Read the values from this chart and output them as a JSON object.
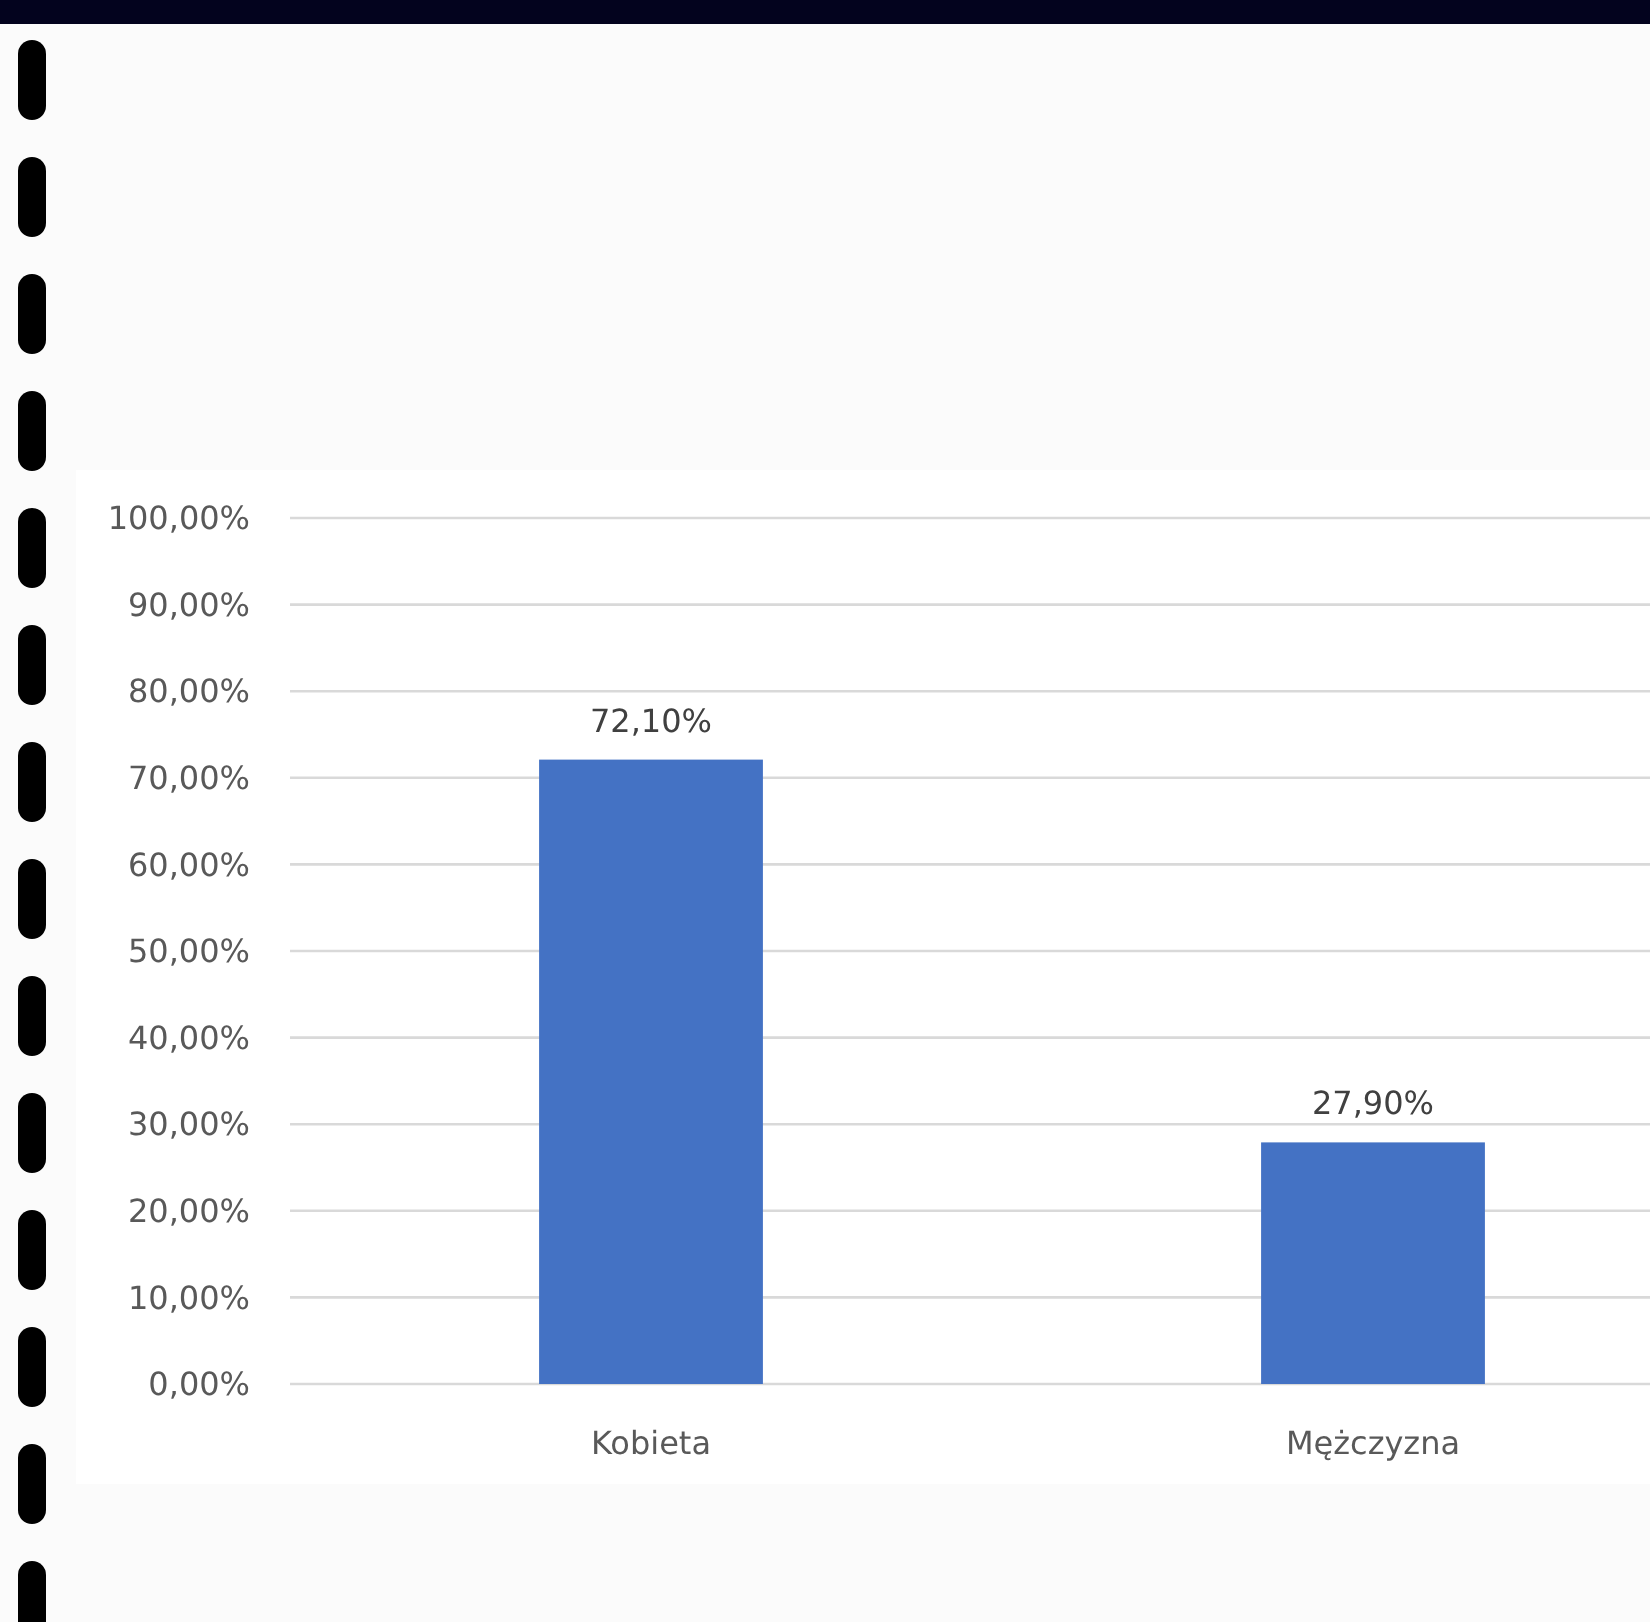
{
  "chart_data": {
    "type": "bar",
    "categories": [
      "Kobieta",
      "Mężczyzna"
    ],
    "values": [
      72.1,
      27.9
    ],
    "color": "#4472c4",
    "value_labels": [
      "72,10%",
      "27,90%"
    ],
    "ylim": [
      0,
      100
    ],
    "yticks": [
      {
        "value": 0,
        "label": "0,00%"
      },
      {
        "value": 10,
        "label": "10,00%"
      },
      {
        "value": 20,
        "label": "20,00%"
      },
      {
        "value": 30,
        "label": "30,00%"
      },
      {
        "value": 40,
        "label": "40,00%"
      },
      {
        "value": 50,
        "label": "50,00%"
      },
      {
        "value": 60,
        "label": "60,00%"
      },
      {
        "value": 70,
        "label": "70,00%"
      },
      {
        "value": 80,
        "label": "80,00%"
      },
      {
        "value": 90,
        "label": "90,00%"
      },
      {
        "value": 100,
        "label": "100,00%"
      }
    ],
    "grid": "y"
  }
}
